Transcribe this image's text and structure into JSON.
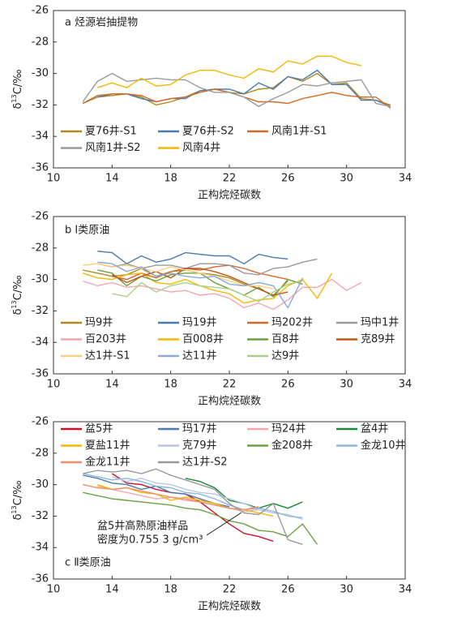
{
  "chart_data": [
    {
      "type": "line",
      "title": "a 烃源岩抽提物",
      "xlabel": "正构烷烃碳数",
      "ylabel": [
        "δ",
        "13",
        "C/‰"
      ],
      "xlim": [
        10,
        34
      ],
      "xticks": [
        10,
        14,
        18,
        22,
        26,
        30,
        34
      ],
      "ylim": [
        -36,
        -26
      ],
      "yticks": [
        -36,
        -34,
        -32,
        -30,
        -28,
        -26
      ],
      "series": [
        {
          "name": "夏76井-S1",
          "color": "#b08a1e",
          "x": [
            12,
            13,
            14,
            15,
            16,
            17,
            18,
            19,
            20,
            21,
            22,
            23,
            24,
            25,
            26,
            27,
            28,
            29,
            30,
            31,
            32,
            33
          ],
          "values": [
            -31.9,
            -31.5,
            -31.4,
            -31.3,
            -31.5,
            -32.0,
            -31.8,
            -31.5,
            -31.1,
            -31.0,
            -31.2,
            -31.3,
            -31.0,
            -30.9,
            -30.2,
            -30.5,
            -30.0,
            -30.7,
            -30.6,
            -31.6,
            -31.7,
            -32.0
          ]
        },
        {
          "name": "夏76井-S2",
          "color": "#4a7ab0",
          "x": [
            13,
            14,
            15,
            16,
            17,
            18,
            19,
            20,
            21,
            22,
            23,
            24,
            25,
            26,
            27,
            28,
            29,
            30,
            31,
            32,
            33
          ],
          "values": [
            -31.5,
            -31.3,
            -31.3,
            -31.6,
            -31.8,
            -31.6,
            -31.6,
            -31.1,
            -31.0,
            -31.0,
            -31.3,
            -30.6,
            -31.0,
            -30.2,
            -30.4,
            -29.8,
            -30.7,
            -30.7,
            -31.7,
            -31.7,
            -32.1
          ]
        },
        {
          "name": "风南1井-S1",
          "color": "#d2692a",
          "x": [
            12,
            13,
            14,
            15,
            16,
            17,
            18,
            19,
            20,
            21,
            22,
            23,
            24,
            25,
            26,
            27,
            28,
            29,
            30,
            31,
            32,
            33
          ],
          "values": [
            -31.9,
            -31.4,
            -31.3,
            -31.3,
            -31.4,
            -31.8,
            -31.6,
            -31.5,
            -31.2,
            -31.0,
            -31.2,
            -31.5,
            -31.8,
            -31.8,
            -31.9,
            -31.6,
            -31.4,
            -31.2,
            -31.4,
            -31.5,
            -31.5,
            -32.2
          ]
        },
        {
          "name": "风南1井-S2",
          "color": "#9a9a9a",
          "x": [
            12,
            13,
            14,
            15,
            16,
            17,
            18,
            19,
            20,
            21,
            22,
            23,
            24,
            25,
            26,
            27,
            28,
            29,
            30,
            31,
            32,
            33
          ],
          "values": [
            -31.8,
            -30.5,
            -30.0,
            -30.5,
            -30.4,
            -30.3,
            -30.4,
            -30.4,
            -30.9,
            -31.2,
            -31.2,
            -31.5,
            -32.1,
            -31.6,
            -31.2,
            -30.7,
            -30.8,
            -30.6,
            -30.5,
            -30.4,
            -31.9,
            -32.1
          ]
        },
        {
          "name": "风南4井",
          "color": "#f5b800",
          "x": [
            13,
            14,
            15,
            16,
            17,
            18,
            19,
            20,
            21,
            22,
            23,
            24,
            25,
            26,
            27,
            28,
            29,
            30,
            31
          ],
          "values": [
            -30.9,
            -30.6,
            -30.9,
            -30.3,
            -30.8,
            -30.7,
            -30.1,
            -29.8,
            -29.8,
            -30.1,
            -30.3,
            -29.7,
            -29.9,
            -29.2,
            -29.4,
            -28.9,
            -28.9,
            -29.3,
            -29.5
          ]
        }
      ]
    },
    {
      "type": "line",
      "title": "b Ⅰ类原油",
      "xlabel": "正构烷烃碳数",
      "ylabel": [
        "δ",
        "13",
        "C/‰"
      ],
      "xlim": [
        10,
        34
      ],
      "xticks": [
        10,
        14,
        18,
        22,
        26,
        30,
        34
      ],
      "ylim": [
        -36,
        -26
      ],
      "yticks": [
        -36,
        -34,
        -32,
        -30,
        -28,
        -26
      ],
      "series": [
        {
          "name": "玛9井",
          "color": "#b08a1e",
          "x": [
            12,
            13,
            14,
            15,
            16,
            17,
            18,
            19,
            20,
            21,
            22,
            23,
            24,
            25,
            26
          ],
          "values": [
            -29.4,
            -29.6,
            -29.8,
            -29.7,
            -29.3,
            -29.8,
            -29.5,
            -29.4,
            -29.6,
            -29.7,
            -29.9,
            -30.3,
            -30.6,
            -31.0,
            -30.1
          ]
        },
        {
          "name": "玛19井",
          "color": "#4a7ab0",
          "x": [
            13,
            14,
            15,
            16,
            17,
            18,
            19,
            20,
            21,
            22,
            23,
            24,
            25,
            26
          ],
          "values": [
            -28.2,
            -28.3,
            -29.0,
            -28.5,
            -28.9,
            -28.7,
            -28.3,
            -28.4,
            -28.5,
            -28.5,
            -29.0,
            -28.4,
            -28.6,
            -28.7
          ]
        },
        {
          "name": "玛202井",
          "color": "#d2692a",
          "x": [
            14,
            15,
            16,
            17,
            18,
            19,
            20,
            21,
            22,
            23,
            24,
            25,
            26
          ],
          "values": [
            -29.8,
            -30.0,
            -29.6,
            -29.9,
            -29.5,
            -29.3,
            -29.4,
            -29.2,
            -29.1,
            -29.3,
            -29.6,
            -29.8,
            -30.0
          ]
        },
        {
          "name": "玛中1井",
          "color": "#9a9a9a",
          "x": [
            13,
            14,
            15,
            16,
            17,
            18,
            19,
            20,
            21,
            22,
            23,
            24,
            25,
            26,
            27,
            28
          ],
          "values": [
            -29.0,
            -29.2,
            -29.0,
            -29.3,
            -29.1,
            -29.1,
            -29.3,
            -29.0,
            -29.0,
            -29.1,
            -29.6,
            -29.7,
            -29.3,
            -29.2,
            -28.9,
            -28.7
          ]
        },
        {
          "name": "百203井",
          "color": "#f4a6b0",
          "x": [
            12,
            13,
            14,
            15,
            16,
            17,
            18,
            19,
            20,
            21,
            22,
            23,
            24,
            25,
            26,
            27,
            28,
            29,
            30,
            31
          ],
          "values": [
            -30.1,
            -30.4,
            -30.2,
            -30.5,
            -30.4,
            -30.6,
            -30.8,
            -30.7,
            -31.0,
            -30.9,
            -31.2,
            -31.8,
            -31.5,
            -31.9,
            -31.3,
            -30.5,
            -30.5,
            -30.0,
            -30.7,
            -30.2
          ]
        },
        {
          "name": "百008井",
          "color": "#f5b800",
          "x": [
            12,
            13,
            14,
            15,
            16,
            17,
            18,
            19,
            20,
            21,
            22,
            23,
            24,
            25,
            26,
            27,
            28,
            29
          ],
          "values": [
            -29.6,
            -29.9,
            -30.0,
            -29.7,
            -29.6,
            -30.2,
            -30.3,
            -30.0,
            -30.4,
            -30.7,
            -30.9,
            -31.5,
            -31.3,
            -31.2,
            -30.4,
            -30.0,
            -31.2,
            -29.6
          ]
        },
        {
          "name": "百8井",
          "color": "#6ea040",
          "x": [
            13,
            14,
            15,
            16,
            17,
            18,
            19,
            20,
            21,
            22,
            23,
            24,
            25,
            26,
            27
          ],
          "values": [
            -29.4,
            -29.6,
            -30.4,
            -29.8,
            -30.1,
            -29.7,
            -29.6,
            -29.6,
            -30.2,
            -30.6,
            -31.0,
            -30.5,
            -31.1,
            -30.0,
            -30.3
          ]
        },
        {
          "name": "克89井",
          "color": "#c0561a",
          "x": [
            14,
            15,
            16,
            17,
            18,
            19,
            20,
            21,
            22,
            23,
            24,
            25,
            26
          ],
          "values": [
            -29.7,
            -30.2,
            -29.8,
            -29.5,
            -29.9,
            -29.3,
            -29.3,
            -29.5,
            -29.8,
            -30.2,
            -30.6,
            -31.0,
            -30.8
          ]
        },
        {
          "name": "达1井-S1",
          "color": "#fbcf80",
          "x": [
            12,
            13,
            14,
            15,
            16,
            17,
            18,
            19,
            20,
            21,
            22,
            23,
            24,
            25
          ],
          "values": [
            -29.1,
            -29.0,
            -29.2,
            -29.1,
            -29.3,
            -29.5,
            -29.2,
            -29.4,
            -29.6,
            -29.8,
            -30.1,
            -30.4,
            -30.4,
            -30.6
          ]
        },
        {
          "name": "达11井",
          "color": "#8aa8d8",
          "x": [
            13,
            14,
            15,
            16,
            17,
            18,
            19,
            20,
            21,
            22,
            23,
            24,
            25,
            26,
            27
          ],
          "values": [
            -28.9,
            -29.0,
            -29.5,
            -29.2,
            -29.8,
            -29.6,
            -29.8,
            -29.9,
            -29.8,
            -30.3,
            -30.4,
            -30.2,
            -30.4,
            -31.8,
            -29.9
          ]
        },
        {
          "name": "达9井",
          "color": "#a8d08a",
          "x": [
            14,
            15,
            16,
            17,
            18,
            19,
            20,
            21,
            22,
            23,
            24,
            25,
            26,
            27
          ],
          "values": [
            -30.9,
            -31.1,
            -30.2,
            -30.8,
            -30.4,
            -30.2,
            -30.4,
            -30.5,
            -30.6,
            -31.0,
            -31.4,
            -30.8,
            -30.3,
            -30.1
          ]
        }
      ]
    },
    {
      "type": "line",
      "title": "c Ⅱ类原油",
      "xlabel": "正构烷烃碳数",
      "ylabel": [
        "δ",
        "13",
        "C/‰"
      ],
      "xlim": [
        10,
        34
      ],
      "xticks": [
        10,
        14,
        18,
        22,
        26,
        30,
        34
      ],
      "ylim": [
        -36,
        -26
      ],
      "yticks": [
        -36,
        -34,
        -32,
        -30,
        -28,
        -26
      ],
      "annotation": [
        "盆5井高熟原油样品",
        "密度为0.755 3 g/cm³"
      ],
      "series": [
        {
          "name": "盆5井",
          "color": "#d0102a",
          "x": [
            14,
            15,
            16,
            17,
            18,
            19,
            20,
            21,
            22,
            23,
            24,
            25
          ],
          "values": [
            -29.3,
            -29.9,
            -30.0,
            -30.3,
            -30.5,
            -30.6,
            -31.1,
            -31.8,
            -32.5,
            -33.1,
            -33.3,
            -33.6
          ]
        },
        {
          "name": "玛17井",
          "color": "#4a7ab0",
          "x": [
            12,
            13,
            14,
            15,
            16,
            17,
            18,
            19,
            20,
            21,
            22
          ],
          "values": [
            -29.4,
            -29.6,
            -29.9,
            -30.0,
            -30.3,
            -30.1,
            -30.5,
            -30.6,
            -30.9,
            -31.2,
            -31.4
          ]
        },
        {
          "name": "玛24井",
          "color": "#f4a6b0",
          "x": [
            13,
            14,
            15,
            16,
            17,
            18,
            19,
            20,
            21,
            22,
            23,
            24
          ],
          "values": [
            -30.1,
            -30.3,
            -30.5,
            -30.7,
            -30.9,
            -30.8,
            -31.0,
            -31.1,
            -31.3,
            -31.5,
            -31.7,
            -31.6
          ]
        },
        {
          "name": "盆4井",
          "color": "#1a8a3a",
          "x": [
            19,
            20,
            21,
            22,
            23,
            24,
            25,
            26,
            27
          ],
          "values": [
            -29.6,
            -29.8,
            -30.2,
            -31.0,
            -31.2,
            -31.5,
            -31.2,
            -31.5,
            -31.1
          ]
        },
        {
          "name": "夏盐11井",
          "color": "#f5b800",
          "x": [
            13,
            14,
            15,
            16,
            17,
            18,
            19,
            20,
            21,
            22,
            23,
            24,
            25
          ],
          "values": [
            -30.0,
            -30.3,
            -30.2,
            -30.5,
            -30.6,
            -31.0,
            -30.8,
            -31.0,
            -31.2,
            -31.5,
            -31.6,
            -31.8,
            -32.0
          ]
        },
        {
          "name": "克79井",
          "color": "#b8c8e0",
          "x": [
            14,
            15,
            16,
            17,
            18,
            19,
            20,
            21,
            22,
            23,
            24,
            25,
            26,
            27
          ],
          "values": [
            -29.5,
            -29.8,
            -29.6,
            -29.9,
            -30.0,
            -30.3,
            -30.5,
            -30.6,
            -30.9,
            -31.2,
            -31.6,
            -31.8,
            -31.9,
            -32.2
          ]
        },
        {
          "name": "金208井",
          "color": "#6ea040",
          "x": [
            12,
            13,
            14,
            15,
            16,
            17,
            18,
            19,
            20,
            21,
            22,
            23,
            24,
            25,
            26,
            27,
            28
          ],
          "values": [
            -30.5,
            -30.7,
            -30.9,
            -31.0,
            -31.1,
            -31.2,
            -31.3,
            -31.5,
            -31.6,
            -31.9,
            -32.3,
            -32.5,
            -32.9,
            -33.0,
            -33.3,
            -32.5,
            -33.8
          ]
        },
        {
          "name": "金龙10井",
          "color": "#8ab8e0",
          "x": [
            12,
            13,
            14,
            15,
            16,
            17,
            18,
            19,
            20,
            21,
            22,
            23,
            24,
            25,
            26,
            27
          ],
          "values": [
            -29.3,
            -29.5,
            -29.7,
            -29.6,
            -29.8,
            -30.1,
            -30.2,
            -30.5,
            -30.6,
            -30.9,
            -31.3,
            -31.6,
            -31.5,
            -31.7,
            -32.0,
            -32.1
          ]
        },
        {
          "name": "金龙11井",
          "color": "#f0906a",
          "x": [
            12,
            13,
            14,
            15,
            16,
            17,
            18,
            19,
            20,
            21,
            22,
            23,
            24
          ],
          "values": [
            -30.0,
            -30.2,
            -30.3,
            -30.2,
            -30.4,
            -30.6,
            -30.8,
            -30.9,
            -31.1,
            -31.3,
            -31.5,
            -31.6,
            -31.4
          ]
        },
        {
          "name": "达1井-S2",
          "color": "#9a9a9a",
          "x": [
            12,
            13,
            14,
            15,
            16,
            17,
            18,
            19,
            20,
            21,
            22,
            23,
            24,
            25,
            26,
            27
          ],
          "values": [
            -29.3,
            -29.1,
            -29.2,
            -29.1,
            -29.3,
            -29.0,
            -29.4,
            -29.7,
            -30.0,
            -30.3,
            -31.2,
            -31.8,
            -31.9,
            -31.2,
            -33.5,
            -33.8
          ]
        }
      ]
    }
  ]
}
